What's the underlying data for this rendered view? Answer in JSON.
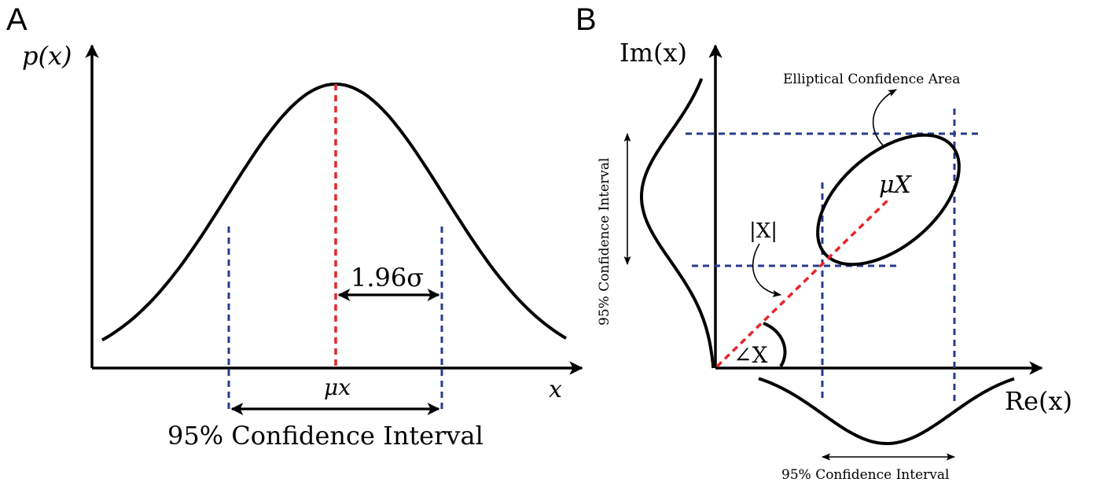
{
  "panel_a": {
    "letter": "A",
    "y_axis_label": "p(x)",
    "x_axis_label": "x",
    "mean_label": "μx",
    "sigma_label": "1.96σ",
    "interval_label": "95% Confidence Interval"
  },
  "panel_b": {
    "letter": "B",
    "y_axis_label": "Im(x)",
    "x_axis_label": "Re(x)",
    "mean_label": "μX",
    "magnitude_label": "|X|",
    "angle_label": "∠X",
    "ellipse_label": "Elliptical Confidence Area",
    "vertical_interval_label": "95% Confidence Interval",
    "horizontal_interval_label": "95% Confidence Interval"
  },
  "colors": {
    "curve": "#000000",
    "mean_line": "#e8252a",
    "interval_lines": "#283b8c"
  }
}
